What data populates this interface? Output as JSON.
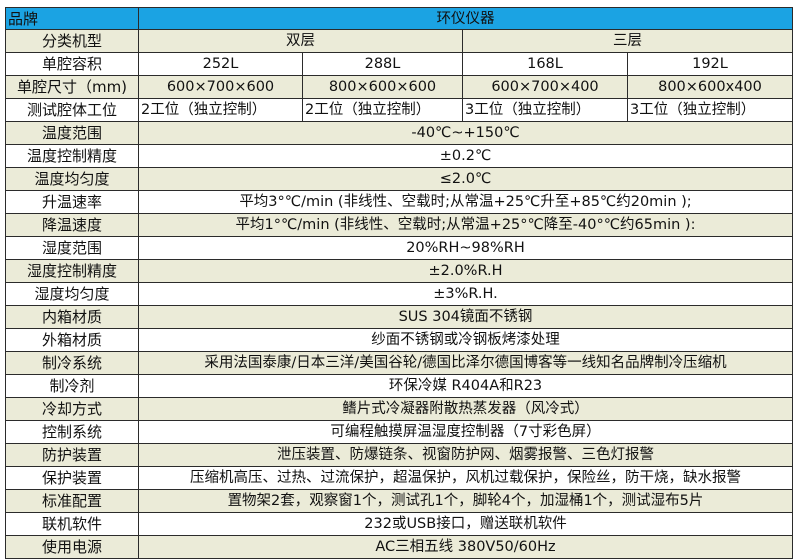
{
  "header": {
    "label": "品牌",
    "value": "环仪仪器",
    "color": "#1ba3e3"
  },
  "row_colors": {
    "alt": "#ebebd8",
    "plain": "#ffffff"
  },
  "model_type": {
    "label": "分类机型",
    "groups": [
      "双层",
      "三层"
    ]
  },
  "volume": {
    "label": "单腔容积",
    "values": [
      "252L",
      "288L",
      "168L",
      "192L"
    ]
  },
  "size": {
    "label": "单腔尺寸（mm)",
    "values": [
      "600×700×600",
      "800×600×600",
      "600×700×400",
      "800×600x400"
    ]
  },
  "stations": {
    "label": "测试腔体工位",
    "values": [
      "2工位（独立控制）",
      "2工位（独立控制）",
      "3工位（独立控制）",
      "3工位（独立控制）"
    ]
  },
  "specs": [
    {
      "label": "温度范围",
      "value": "-40℃~+150℃"
    },
    {
      "label": "温度控制精度",
      "value": "±0.2℃"
    },
    {
      "label": "温度均匀度",
      "value": "≤2.0℃"
    },
    {
      "label": "升温速率",
      "value": "平均3°℃/min (非线性、空载时;从常温+25℃升至+85℃约20min );"
    },
    {
      "label": "降温速度",
      "value": "平均1°℃/min (非线性、空载时;从常温+25°℃降至-40°℃约65min ):"
    },
    {
      "label": "湿度范围",
      "value": "20%RH~98%RH"
    },
    {
      "label": "湿度控制精度",
      "value": "±2.0%R.H"
    },
    {
      "label": "湿度均匀度",
      "value": "±3%R.H."
    },
    {
      "label": "内箱材质",
      "value": "SUS 304镜面不锈钢"
    },
    {
      "label": "外箱材质",
      "value": "纱面不锈钢或冷钢板烤漆处理"
    },
    {
      "label": "制冷系统",
      "value": "采用法国泰康/日本三洋/美国谷轮/德国比泽尔德国博客等一线知名品牌制冷压缩机"
    },
    {
      "label": "制冷剂",
      "value": "环保冷媒 R404A和R23"
    },
    {
      "label": "冷却方式",
      "value": "鳍片式冷凝器附散热蒸发器（风冷式）"
    },
    {
      "label": "控制系统",
      "value": "可编程触摸屏温湿度控制器（7寸彩色屏）"
    },
    {
      "label": "防护装置",
      "value": "泄压装置、防爆链条、视窗防护网、烟雾报警、三色灯报警"
    },
    {
      "label": "保护装置",
      "value": "压缩机高压、过热、过流保护，超温保护，风机过载保护，保险丝，防干烧，缺水报警"
    },
    {
      "label": "标准配置",
      "value": "置物架2套，观察窗1个，测试孔1个，脚轮4个，加湿桶1个，测试湿布5片"
    },
    {
      "label": "联机软件",
      "value": "232或USB接口，赠送联机软件"
    },
    {
      "label": "使用电源",
      "value": "AC三相五线 380V50/60Hz"
    }
  ]
}
